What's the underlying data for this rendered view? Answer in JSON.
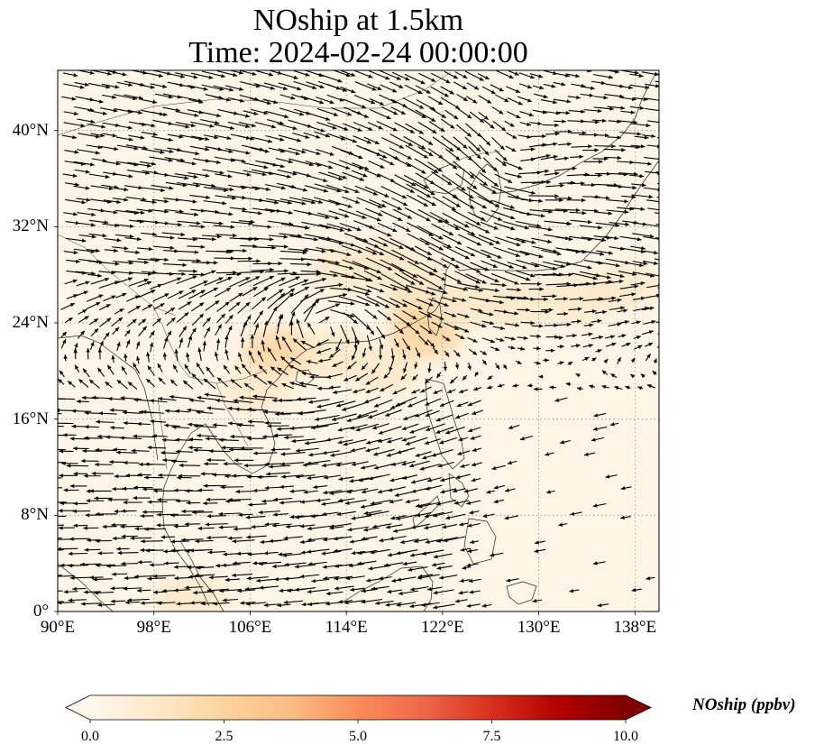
{
  "title": {
    "line1": "NOship at 1.5km",
    "line2": "Time: 2024-02-24 00:00:00"
  },
  "map": {
    "projection": "PlateCarree",
    "lon_range": [
      90,
      140
    ],
    "lat_range": [
      0,
      45
    ],
    "lat_ticks": [
      {
        "value": 0,
        "label": "0°"
      },
      {
        "value": 8,
        "label": "8°N"
      },
      {
        "value": 16,
        "label": "16°N"
      },
      {
        "value": 24,
        "label": "24°N"
      },
      {
        "value": 32,
        "label": "32°N"
      },
      {
        "value": 40,
        "label": "40°N"
      }
    ],
    "lon_ticks": [
      {
        "value": 90,
        "label": "90°E"
      },
      {
        "value": 98,
        "label": "98°E"
      },
      {
        "value": 106,
        "label": "106°E"
      },
      {
        "value": 114,
        "label": "114°E"
      },
      {
        "value": 122,
        "label": "122°E"
      },
      {
        "value": 130,
        "label": "130°E"
      },
      {
        "value": 138,
        "label": "138°E"
      }
    ],
    "gridlines": "dotted gray",
    "background_color": "#fff5e6",
    "concentration_hotspots": [
      {
        "lon": 108.5,
        "lat": 21.5,
        "value": 2.6
      },
      {
        "lon": 113,
        "lat": 21.5,
        "value": 1.8
      },
      {
        "lon": 117,
        "lat": 20,
        "value": 1.7
      },
      {
        "lon": 120.5,
        "lat": 23,
        "value": 2.0
      },
      {
        "lon": 120.5,
        "lat": 25.5,
        "value": 2.1
      },
      {
        "lon": 124,
        "lat": 25.5,
        "value": 1.6
      },
      {
        "lon": 128,
        "lat": 25.5,
        "value": 1.2
      },
      {
        "lon": 133,
        "lat": 26,
        "value": 1.4
      },
      {
        "lon": 137,
        "lat": 27,
        "value": 1.2
      },
      {
        "lon": 119.5,
        "lat": 27.5,
        "value": 1.7
      },
      {
        "lon": 117,
        "lat": 29,
        "value": 1.2
      },
      {
        "lon": 114,
        "lat": 28.5,
        "value": 1.1
      },
      {
        "lon": 106.5,
        "lat": 18.5,
        "value": 1.3
      },
      {
        "lon": 101,
        "lat": 1,
        "value": 1.0
      }
    ],
    "wind_vectors": "black arrows"
  },
  "colorbar": {
    "label": "NOship (ppbv)",
    "ticks": [
      "0.0",
      "2.5",
      "5.0",
      "7.5",
      "10.0"
    ],
    "min": 0,
    "max": 10,
    "extend": "both",
    "colormap": "OrRd",
    "colors": [
      "#fff7ec",
      "#fee8c8",
      "#fdd49e",
      "#fdbb84",
      "#fc8d59",
      "#ef6548",
      "#d7301f",
      "#b30000",
      "#7f0000"
    ]
  }
}
